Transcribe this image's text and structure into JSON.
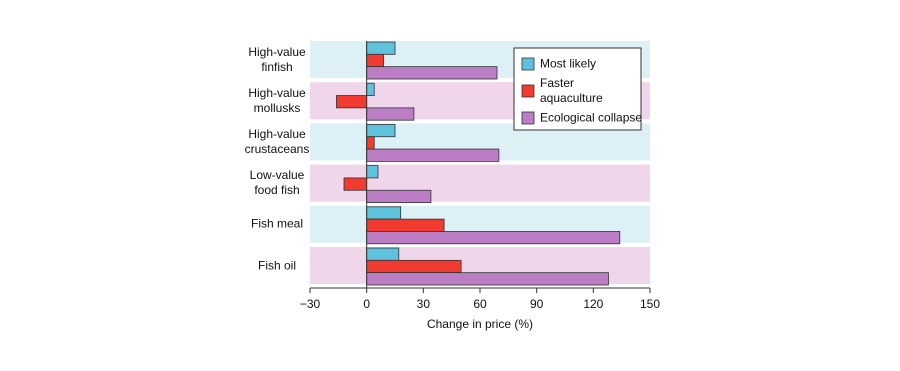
{
  "chart_data": {
    "type": "hbar",
    "x_label": "Change in price (%)",
    "categories": [
      "High-value\nfinfish",
      "High-value\nmollusks",
      "High-value\ncrustaceans",
      "Low-value\nfood fish",
      "Fish meal",
      "Fish oil"
    ],
    "series": [
      {
        "name": "Most likely",
        "color": "#5fc2dc",
        "values": [
          15,
          4,
          15,
          6,
          18,
          17
        ]
      },
      {
        "name": "Faster\naquaculture",
        "color": "#f23b30",
        "values": [
          9,
          -16,
          4,
          -12,
          41,
          50
        ]
      },
      {
        "name": "Ecological collapse",
        "color": "#bb7dc4",
        "values": [
          69,
          25,
          70,
          34,
          134,
          128
        ]
      }
    ],
    "xlim": [
      -30,
      150
    ],
    "xticks": [
      {
        "value": -30,
        "label": "−30"
      },
      0,
      30,
      60,
      90,
      120,
      150
    ]
  }
}
